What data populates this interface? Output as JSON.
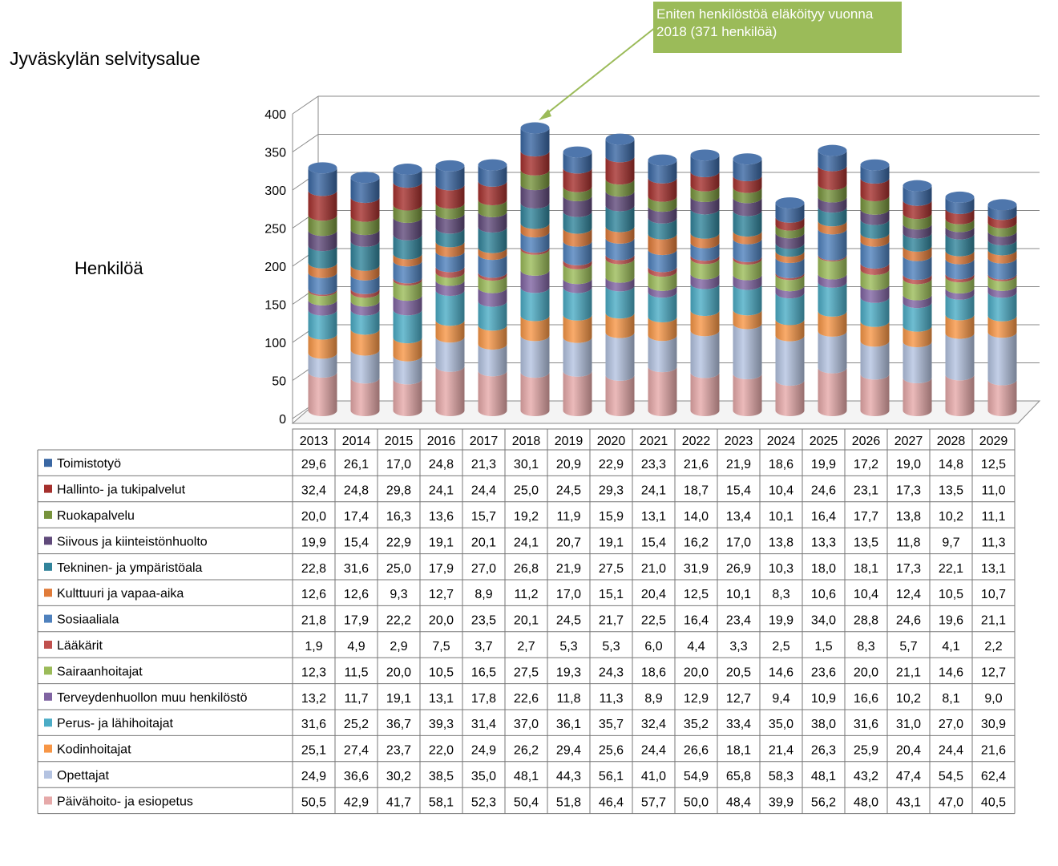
{
  "chart_data": {
    "type": "bar",
    "stacked": true,
    "style": "3d-cylinder",
    "title": "Jyväskylän selvitysalue",
    "ylabel": "Henkilöä",
    "ylim": [
      0,
      400
    ],
    "yticks": [
      "0",
      "50",
      "100",
      "150",
      "200",
      "250",
      "300",
      "350",
      "400"
    ],
    "grid": true,
    "legend": "data-table-below",
    "annotation": "Eniten henkilöstöä eläköityy vuonna 2018 (371 henkilöä)",
    "categories": [
      "2013",
      "2014",
      "2015",
      "2016",
      "2017",
      "2018",
      "2019",
      "2020",
      "2021",
      "2022",
      "2023",
      "2024",
      "2025",
      "2026",
      "2027",
      "2028",
      "2029"
    ],
    "series": [
      {
        "name": "Päivähoito- ja esiopetus",
        "color": "#e6a9a9",
        "values": [
          50.5,
          42.9,
          41.7,
          58.1,
          52.3,
          50.4,
          51.8,
          46.4,
          57.7,
          50.0,
          48.4,
          39.9,
          56.2,
          48.0,
          43.1,
          47.0,
          40.5
        ],
        "labels": [
          "50,5",
          "42,9",
          "41,7",
          "58,1",
          "52,3",
          "50,4",
          "51,8",
          "46,4",
          "57,7",
          "50,0",
          "48,4",
          "39,9",
          "56,2",
          "48,0",
          "43,1",
          "47,0",
          "40,5"
        ]
      },
      {
        "name": "Opettajat",
        "color": "#b4c3e1",
        "values": [
          24.9,
          36.6,
          30.2,
          38.5,
          35.0,
          48.1,
          44.3,
          56.1,
          41.0,
          54.9,
          65.8,
          58.3,
          48.1,
          43.2,
          47.4,
          54.5,
          62.4
        ],
        "labels": [
          "24,9",
          "36,6",
          "30,2",
          "38,5",
          "35,0",
          "48,1",
          "44,3",
          "56,1",
          "41,0",
          "54,9",
          "65,8",
          "58,3",
          "48,1",
          "43,2",
          "47,4",
          "54,5",
          "62,4"
        ]
      },
      {
        "name": "Kodinhoitajat",
        "color": "#f79646",
        "values": [
          25.1,
          27.4,
          23.7,
          22.0,
          24.9,
          26.2,
          29.4,
          25.6,
          24.4,
          26.6,
          18.1,
          21.4,
          26.3,
          25.9,
          20.4,
          24.4,
          21.6
        ],
        "labels": [
          "25,1",
          "27,4",
          "23,7",
          "22,0",
          "24,9",
          "26,2",
          "29,4",
          "25,6",
          "24,4",
          "26,6",
          "18,1",
          "21,4",
          "26,3",
          "25,9",
          "20,4",
          "24,4",
          "21,6"
        ]
      },
      {
        "name": "Perus- ja lähihoitajat",
        "color": "#4bacc6",
        "values": [
          31.6,
          25.2,
          36.7,
          39.3,
          31.4,
          37.0,
          36.1,
          35.7,
          32.4,
          35.2,
          33.4,
          35.0,
          38.0,
          31.6,
          31.0,
          27.0,
          30.9
        ],
        "labels": [
          "31,6",
          "25,2",
          "36,7",
          "39,3",
          "31,4",
          "37,0",
          "36,1",
          "35,7",
          "32,4",
          "35,2",
          "33,4",
          "35,0",
          "38,0",
          "31,6",
          "31,0",
          "27,0",
          "30,9"
        ]
      },
      {
        "name": "Terveydenhuollon muu henkilöstö",
        "color": "#8064a2",
        "values": [
          13.2,
          11.7,
          19.1,
          13.1,
          17.8,
          22.6,
          11.8,
          11.3,
          8.9,
          12.9,
          12.7,
          9.4,
          10.9,
          16.6,
          10.2,
          8.1,
          9.0
        ],
        "labels": [
          "13,2",
          "11,7",
          "19,1",
          "13,1",
          "17,8",
          "22,6",
          "11,8",
          "11,3",
          "8,9",
          "12,9",
          "12,7",
          "9,4",
          "10,9",
          "16,6",
          "10,2",
          "8,1",
          "9,0"
        ]
      },
      {
        "name": "Sairaanhoitajat",
        "color": "#9bbb59",
        "values": [
          12.3,
          11.5,
          20.0,
          10.5,
          16.5,
          27.5,
          19.3,
          24.3,
          18.6,
          20.0,
          20.5,
          14.6,
          23.6,
          20.0,
          21.1,
          14.6,
          12.7
        ],
        "labels": [
          "12,3",
          "11,5",
          "20,0",
          "10,5",
          "16,5",
          "27,5",
          "19,3",
          "24,3",
          "18,6",
          "20,0",
          "20,5",
          "14,6",
          "23,6",
          "20,0",
          "21,1",
          "14,6",
          "12,7"
        ]
      },
      {
        "name": "Lääkärit",
        "color": "#c0504d",
        "values": [
          1.9,
          4.9,
          2.9,
          7.5,
          3.7,
          2.7,
          5.3,
          5.3,
          6.0,
          4.4,
          3.3,
          2.5,
          1.5,
          8.3,
          5.7,
          4.1,
          2.2
        ],
        "labels": [
          "1,9",
          "4,9",
          "2,9",
          "7,5",
          "3,7",
          "2,7",
          "5,3",
          "5,3",
          "6,0",
          "4,4",
          "3,3",
          "2,5",
          "1,5",
          "8,3",
          "5,7",
          "4,1",
          "2,2"
        ]
      },
      {
        "name": "Sosiaaliala",
        "color": "#4f81bd",
        "values": [
          21.8,
          17.9,
          22.2,
          20.0,
          23.5,
          20.1,
          24.5,
          21.7,
          22.5,
          16.4,
          23.4,
          19.9,
          34.0,
          28.8,
          24.6,
          19.6,
          21.1
        ],
        "labels": [
          "21,8",
          "17,9",
          "22,2",
          "20,0",
          "23,5",
          "20,1",
          "24,5",
          "21,7",
          "22,5",
          "16,4",
          "23,4",
          "19,9",
          "34,0",
          "28,8",
          "24,6",
          "19,6",
          "21,1"
        ]
      },
      {
        "name": "Kulttuuri ja vapaa-aika",
        "color": "#e07b39",
        "values": [
          12.6,
          12.6,
          9.3,
          12.7,
          8.9,
          11.2,
          17.0,
          15.1,
          20.4,
          12.5,
          10.1,
          8.3,
          10.6,
          10.4,
          12.4,
          10.5,
          10.7
        ],
        "labels": [
          "12,6",
          "12,6",
          "9,3",
          "12,7",
          "8,9",
          "11,2",
          "17,0",
          "15,1",
          "20,4",
          "12,5",
          "10,1",
          "8,3",
          "10,6",
          "10,4",
          "12,4",
          "10,5",
          "10,7"
        ]
      },
      {
        "name": "Tekninen- ja ympäristöala",
        "color": "#31849b",
        "values": [
          22.8,
          31.6,
          25.0,
          17.9,
          27.0,
          26.8,
          21.9,
          27.5,
          21.0,
          31.9,
          26.9,
          10.3,
          18.0,
          18.1,
          17.3,
          22.1,
          13.1
        ],
        "labels": [
          "22,8",
          "31,6",
          "25,0",
          "17,9",
          "27,0",
          "26,8",
          "21,9",
          "27,5",
          "21,0",
          "31,9",
          "26,9",
          "10,3",
          "18,0",
          "18,1",
          "17,3",
          "22,1",
          "13,1"
        ]
      },
      {
        "name": "Siivous ja kiinteistönhuolto",
        "color": "#604a7b",
        "values": [
          19.9,
          15.4,
          22.9,
          19.1,
          20.1,
          24.1,
          20.7,
          19.1,
          15.4,
          16.2,
          17.0,
          13.8,
          13.3,
          13.5,
          11.8,
          9.7,
          11.3
        ],
        "labels": [
          "19,9",
          "15,4",
          "22,9",
          "19,1",
          "20,1",
          "24,1",
          "20,7",
          "19,1",
          "15,4",
          "16,2",
          "17,0",
          "13,8",
          "13,3",
          "13,5",
          "11,8",
          "9,7",
          "11,3"
        ]
      },
      {
        "name": "Ruokapalvelu",
        "color": "#77933c",
        "values": [
          20.0,
          17.4,
          16.3,
          13.6,
          15.7,
          19.2,
          11.9,
          15.9,
          13.1,
          14.0,
          13.4,
          10.1,
          16.4,
          17.7,
          13.8,
          10.2,
          11.1
        ],
        "labels": [
          "20,0",
          "17,4",
          "16,3",
          "13,6",
          "15,7",
          "19,2",
          "11,9",
          "15,9",
          "13,1",
          "14,0",
          "13,4",
          "10,1",
          "16,4",
          "17,7",
          "13,8",
          "10,2",
          "11,1"
        ]
      },
      {
        "name": "Hallinto- ja tukipalvelut",
        "color": "#a5302d",
        "values": [
          32.4,
          24.8,
          29.8,
          24.1,
          24.4,
          25.0,
          24.5,
          29.3,
          24.1,
          18.7,
          15.4,
          10.4,
          24.6,
          23.1,
          17.3,
          13.5,
          11.0
        ],
        "labels": [
          "32,4",
          "24,8",
          "29,8",
          "24,1",
          "24,4",
          "25,0",
          "24,5",
          "29,3",
          "24,1",
          "18,7",
          "15,4",
          "10,4",
          "24,6",
          "23,1",
          "17,3",
          "13,5",
          "11,0"
        ]
      },
      {
        "name": "Toimistotyö",
        "color": "#3a67a3",
        "values": [
          29.6,
          26.1,
          17.0,
          24.8,
          21.3,
          30.1,
          20.9,
          22.9,
          23.3,
          21.6,
          21.9,
          18.6,
          19.9,
          17.2,
          19.0,
          14.8,
          12.5
        ],
        "labels": [
          "29,6",
          "26,1",
          "17,0",
          "24,8",
          "21,3",
          "30,1",
          "20,9",
          "22,9",
          "23,3",
          "21,6",
          "21,9",
          "18,6",
          "19,9",
          "17,2",
          "19,0",
          "14,8",
          "12,5"
        ]
      }
    ]
  }
}
